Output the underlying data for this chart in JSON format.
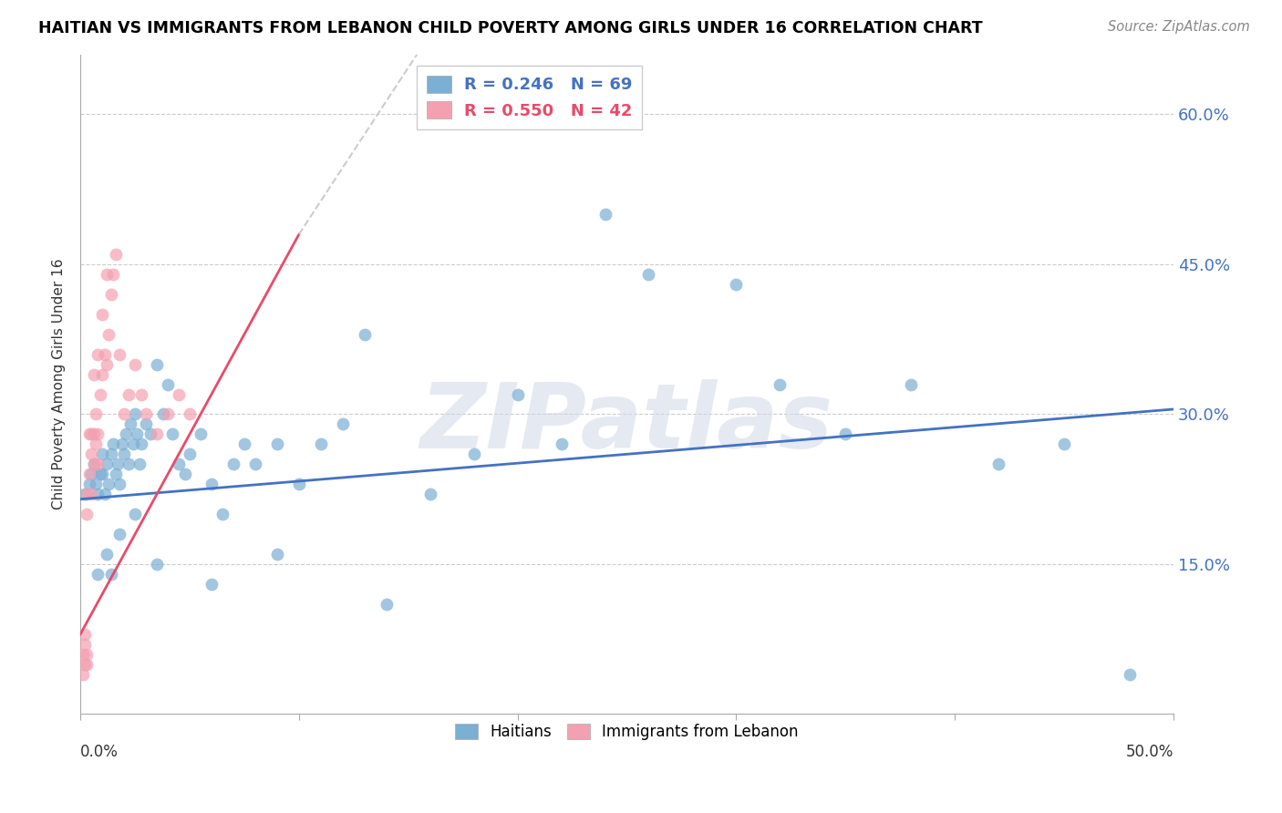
{
  "title": "HAITIAN VS IMMIGRANTS FROM LEBANON CHILD POVERTY AMONG GIRLS UNDER 16 CORRELATION CHART",
  "source": "Source: ZipAtlas.com",
  "ylabel": "Child Poverty Among Girls Under 16",
  "ytick_labels": [
    "60.0%",
    "45.0%",
    "30.0%",
    "15.0%"
  ],
  "ytick_values": [
    0.6,
    0.45,
    0.3,
    0.15
  ],
  "xlim": [
    0.0,
    0.5
  ],
  "ylim": [
    0.0,
    0.66
  ],
  "legend_blue_r": "R = 0.246",
  "legend_blue_n": "N = 69",
  "legend_pink_r": "R = 0.550",
  "legend_pink_n": "N = 42",
  "blue_color": "#7BAFD4",
  "pink_color": "#F4A0B0",
  "blue_line_color": "#4472C4",
  "pink_line_color": "#E84B6A",
  "watermark": "ZIPatlas",
  "haitians_x": [
    0.002,
    0.004,
    0.005,
    0.006,
    0.007,
    0.008,
    0.009,
    0.01,
    0.01,
    0.011,
    0.012,
    0.013,
    0.014,
    0.015,
    0.016,
    0.017,
    0.018,
    0.019,
    0.02,
    0.021,
    0.022,
    0.023,
    0.024,
    0.025,
    0.026,
    0.027,
    0.028,
    0.03,
    0.032,
    0.035,
    0.038,
    0.04,
    0.042,
    0.045,
    0.048,
    0.05,
    0.055,
    0.06,
    0.065,
    0.07,
    0.075,
    0.08,
    0.09,
    0.1,
    0.11,
    0.12,
    0.14,
    0.16,
    0.18,
    0.2,
    0.22,
    0.24,
    0.26,
    0.3,
    0.32,
    0.35,
    0.38,
    0.42,
    0.45,
    0.48,
    0.012,
    0.018,
    0.025,
    0.035,
    0.06,
    0.09,
    0.13,
    0.008,
    0.014
  ],
  "haitians_y": [
    0.22,
    0.23,
    0.24,
    0.25,
    0.23,
    0.22,
    0.24,
    0.26,
    0.24,
    0.22,
    0.25,
    0.23,
    0.26,
    0.27,
    0.24,
    0.25,
    0.23,
    0.27,
    0.26,
    0.28,
    0.25,
    0.29,
    0.27,
    0.3,
    0.28,
    0.25,
    0.27,
    0.29,
    0.28,
    0.35,
    0.3,
    0.33,
    0.28,
    0.25,
    0.24,
    0.26,
    0.28,
    0.23,
    0.2,
    0.25,
    0.27,
    0.25,
    0.27,
    0.23,
    0.27,
    0.29,
    0.11,
    0.22,
    0.26,
    0.32,
    0.27,
    0.5,
    0.44,
    0.43,
    0.33,
    0.28,
    0.33,
    0.25,
    0.27,
    0.04,
    0.16,
    0.18,
    0.2,
    0.15,
    0.13,
    0.16,
    0.38,
    0.14,
    0.14
  ],
  "lebanon_x": [
    0.001,
    0.001,
    0.002,
    0.002,
    0.002,
    0.003,
    0.003,
    0.003,
    0.003,
    0.004,
    0.004,
    0.005,
    0.005,
    0.005,
    0.006,
    0.006,
    0.007,
    0.007,
    0.008,
    0.008,
    0.009,
    0.01,
    0.011,
    0.012,
    0.013,
    0.014,
    0.015,
    0.016,
    0.018,
    0.02,
    0.022,
    0.025,
    0.028,
    0.03,
    0.035,
    0.04,
    0.045,
    0.05,
    0.006,
    0.008,
    0.01,
    0.012
  ],
  "lebanon_y": [
    0.06,
    0.04,
    0.07,
    0.05,
    0.08,
    0.22,
    0.2,
    0.06,
    0.05,
    0.24,
    0.28,
    0.22,
    0.26,
    0.28,
    0.25,
    0.28,
    0.27,
    0.3,
    0.25,
    0.28,
    0.32,
    0.34,
    0.36,
    0.35,
    0.38,
    0.42,
    0.44,
    0.46,
    0.36,
    0.3,
    0.32,
    0.35,
    0.32,
    0.3,
    0.28,
    0.3,
    0.32,
    0.3,
    0.34,
    0.36,
    0.4,
    0.44
  ]
}
